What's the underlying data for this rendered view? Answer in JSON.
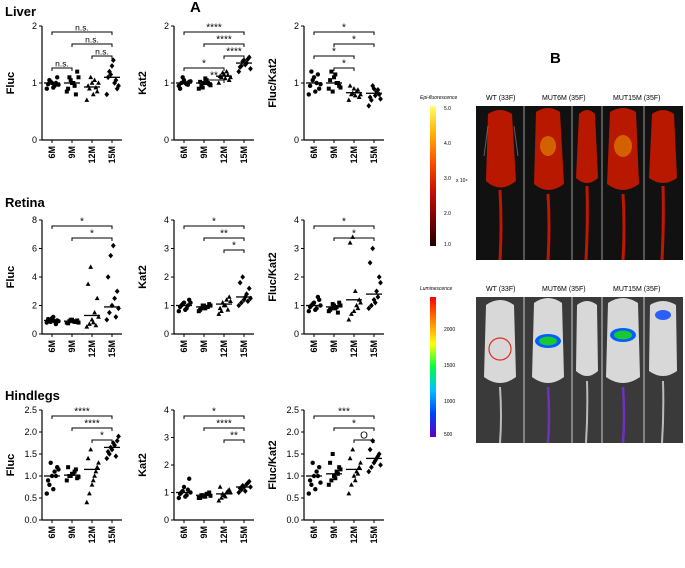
{
  "panel_labels": {
    "a": "A",
    "b": "B"
  },
  "rows": [
    {
      "tissue": "Liver"
    },
    {
      "tissue": "Retina"
    },
    {
      "tissue": "Hindlegs"
    }
  ],
  "categories": [
    "6M",
    "9M",
    "12M",
    "15M"
  ],
  "chart_data": [
    {
      "type": "scatter",
      "row": "Liver",
      "ylabel": "Fluc",
      "ylim": [
        0,
        2
      ],
      "yticks": [
        0,
        1,
        2
      ],
      "means": [
        1.0,
        1.0,
        0.93,
        1.1
      ],
      "series": [
        {
          "values": [
            0.9,
            1.05,
            1.0,
            0.95,
            1.1,
            0.98,
            1.02,
            0.92,
            1.0,
            0.97
          ]
        },
        {
          "values": [
            0.85,
            1.1,
            1.0,
            0.95,
            1.2,
            0.9,
            1.05,
            1.0,
            0.8,
            1.1
          ]
        },
        {
          "values": [
            0.7,
            0.9,
            1.0,
            1.05,
            0.85,
            0.95,
            1.1,
            0.8,
            0.92,
            1.0
          ]
        },
        {
          "values": [
            0.8,
            1.2,
            1.3,
            1.0,
            0.9,
            1.1,
            1.15,
            1.4,
            1.05,
            0.95
          ]
        }
      ],
      "significance": [
        {
          "pair": [
            0,
            1
          ],
          "label": "n.s."
        },
        {
          "pair": [
            2,
            3
          ],
          "label": "n.s."
        },
        {
          "pair": [
            1,
            3
          ],
          "label": "n.s."
        },
        {
          "pair": [
            0,
            3
          ],
          "label": "n.s."
        }
      ]
    },
    {
      "type": "scatter",
      "row": "Liver",
      "ylabel": "Kat2",
      "ylim": [
        0,
        2
      ],
      "yticks": [
        0,
        1,
        2
      ],
      "means": [
        1.0,
        1.0,
        1.12,
        1.35
      ],
      "series": [
        {
          "values": [
            0.95,
            1.0,
            1.05,
            0.98,
            1.02,
            0.9,
            1.1,
            1.0,
            0.97,
            1.03
          ]
        },
        {
          "values": [
            0.9,
            0.95,
            1.0,
            1.05,
            0.98,
            1.02,
            0.92,
            1.08,
            1.0,
            0.96
          ]
        },
        {
          "values": [
            1.0,
            1.1,
            1.15,
            1.2,
            1.05,
            1.12,
            1.18,
            1.08,
            1.14,
            1.1
          ]
        },
        {
          "values": [
            1.2,
            1.3,
            1.4,
            1.35,
            1.45,
            1.28,
            1.38,
            1.32,
            1.42,
            1.25
          ]
        }
      ],
      "significance": [
        {
          "pair": [
            1,
            2
          ],
          "label": "**"
        },
        {
          "pair": [
            0,
            2
          ],
          "label": "*"
        },
        {
          "pair": [
            2,
            3
          ],
          "label": "****"
        },
        {
          "pair": [
            1,
            3
          ],
          "label": "****"
        },
        {
          "pair": [
            0,
            3
          ],
          "label": "****"
        }
      ]
    },
    {
      "type": "scatter",
      "row": "Liver",
      "ylabel": "Fluc/Kat2",
      "ylim": [
        0,
        2
      ],
      "yticks": [
        0,
        1,
        2
      ],
      "means": [
        1.0,
        1.0,
        0.83,
        0.82
      ],
      "series": [
        {
          "values": [
            0.8,
            1.2,
            1.1,
            1.0,
            0.9,
            0.95,
            1.05,
            0.85,
            1.15,
            0.98
          ]
        },
        {
          "values": [
            0.9,
            1.2,
            1.1,
            1.0,
            0.95,
            1.05,
            0.85,
            1.15,
            1.0,
            0.92
          ]
        },
        {
          "values": [
            0.7,
            0.8,
            0.9,
            0.85,
            0.75,
            0.95,
            0.82,
            0.78,
            0.88,
            0.8
          ]
        },
        {
          "values": [
            0.6,
            0.7,
            0.9,
            0.85,
            0.8,
            0.75,
            0.95,
            0.78,
            0.88,
            0.72
          ]
        }
      ],
      "significance": [
        {
          "pair": [
            1,
            2
          ],
          "label": "*"
        },
        {
          "pair": [
            0,
            2
          ],
          "label": "*"
        },
        {
          "pair": [
            1,
            3
          ],
          "label": "*"
        },
        {
          "pair": [
            0,
            3
          ],
          "label": "*"
        }
      ]
    },
    {
      "type": "scatter",
      "row": "Retina",
      "ylabel": "Fluc",
      "ylim": [
        0,
        8
      ],
      "yticks": [
        0,
        2,
        4,
        6,
        8
      ],
      "means": [
        0.95,
        0.9,
        1.3,
        1.9
      ],
      "series": [
        {
          "values": [
            0.8,
            1.0,
            1.1,
            0.9,
            0.95,
            1.05,
            0.85,
            1.2,
            0.7,
            0.9
          ]
        },
        {
          "values": [
            0.8,
            0.9,
            1.0,
            0.85,
            0.95,
            0.75,
            1.0,
            0.9,
            0.85,
            0.8
          ]
        },
        {
          "values": [
            0.5,
            0.7,
            1.0,
            1.5,
            2.5,
            3.5,
            4.7,
            0.8,
            0.6,
            1.2
          ]
        },
        {
          "values": [
            1.0,
            1.5,
            2.0,
            2.5,
            3.0,
            4.0,
            5.5,
            6.2,
            1.2,
            1.8
          ]
        }
      ],
      "significance": [
        {
          "pair": [
            1,
            3
          ],
          "label": "*"
        },
        {
          "pair": [
            0,
            3
          ],
          "label": "*"
        }
      ]
    },
    {
      "type": "scatter",
      "row": "Retina",
      "ylabel": "Kat2",
      "ylim": [
        0,
        4
      ],
      "yticks": [
        0,
        1,
        2,
        3,
        4
      ],
      "means": [
        1.0,
        0.95,
        1.05,
        1.3
      ],
      "series": [
        {
          "values": [
            0.8,
            1.0,
            1.1,
            0.9,
            1.2,
            0.95,
            1.05,
            0.85,
            1.0,
            1.1
          ]
        },
        {
          "values": [
            0.8,
            0.9,
            1.0,
            0.95,
            1.05,
            0.85,
            1.0,
            0.9,
            0.95,
            1.0
          ]
        },
        {
          "values": [
            0.7,
            0.8,
            1.0,
            1.2,
            1.3,
            0.9,
            1.1,
            1.0,
            0.85,
            1.15
          ]
        },
        {
          "values": [
            1.0,
            1.1,
            1.2,
            1.4,
            1.6,
            1.8,
            2.0,
            1.3,
            1.15,
            1.25
          ]
        }
      ],
      "significance": [
        {
          "pair": [
            2,
            3
          ],
          "label": "*"
        },
        {
          "pair": [
            1,
            3
          ],
          "label": "**"
        },
        {
          "pair": [
            0,
            3
          ],
          "label": "*"
        }
      ]
    },
    {
      "type": "scatter",
      "row": "Retina",
      "ylabel": "Fluc/Kat2",
      "ylim": [
        0,
        4
      ],
      "yticks": [
        0,
        1,
        2,
        3,
        4
      ],
      "means": [
        1.0,
        0.95,
        1.2,
        1.4
      ],
      "series": [
        {
          "values": [
            0.8,
            1.0,
            1.1,
            0.9,
            1.2,
            0.95,
            1.05,
            0.85,
            1.3,
            1.0
          ]
        },
        {
          "values": [
            0.8,
            0.9,
            1.0,
            0.95,
            1.1,
            0.85,
            1.05,
            0.9,
            0.75,
            1.0
          ]
        },
        {
          "values": [
            0.5,
            0.7,
            0.8,
            1.0,
            1.2,
            3.2,
            3.4,
            1.5,
            0.9,
            1.1
          ]
        },
        {
          "values": [
            0.9,
            1.0,
            1.2,
            1.5,
            2.0,
            2.5,
            3.0,
            1.1,
            1.3,
            1.8
          ]
        }
      ],
      "significance": [
        {
          "pair": [
            1,
            3
          ],
          "label": "*"
        },
        {
          "pair": [
            0,
            3
          ],
          "label": "*"
        }
      ]
    },
    {
      "type": "scatter",
      "row": "Hindlegs",
      "ylabel": "Fluc",
      "ylim": [
        0,
        2.5
      ],
      "yticks": [
        0,
        0.5,
        1.0,
        1.5,
        2.0,
        2.5
      ],
      "means": [
        1.0,
        1.02,
        1.15,
        1.65
      ],
      "series": [
        {
          "values": [
            0.6,
            0.8,
            1.0,
            1.1,
            1.2,
            0.9,
            1.3,
            0.7,
            1.0,
            1.15
          ]
        },
        {
          "values": [
            0.9,
            1.0,
            1.05,
            1.1,
            0.95,
            1.2,
            1.0,
            1.05,
            1.15,
            0.98
          ]
        },
        {
          "values": [
            0.4,
            0.6,
            0.8,
            1.0,
            1.2,
            1.4,
            1.6,
            0.9,
            1.1,
            1.3
          ]
        },
        {
          "values": [
            1.4,
            1.5,
            1.6,
            1.7,
            1.8,
            1.55,
            1.65,
            1.75,
            1.45,
            1.9
          ]
        }
      ],
      "significance": [
        {
          "pair": [
            2,
            3
          ],
          "label": "*"
        },
        {
          "pair": [
            1,
            3
          ],
          "label": "****"
        },
        {
          "pair": [
            0,
            3
          ],
          "label": "****"
        }
      ]
    },
    {
      "type": "scatter",
      "row": "Hindlegs",
      "ylabel": "Kat2",
      "ylim": [
        0,
        4
      ],
      "yticks": [
        0,
        1,
        2,
        3,
        4
      ],
      "means": [
        1.0,
        0.9,
        0.95,
        1.2
      ],
      "series": [
        {
          "values": [
            0.8,
            1.0,
            1.2,
            0.9,
            1.5,
            0.95,
            1.05,
            0.85,
            1.1,
            1.0
          ]
        },
        {
          "values": [
            0.8,
            0.9,
            0.85,
            0.95,
            1.0,
            0.8,
            0.9,
            0.85,
            0.95,
            0.88
          ]
        },
        {
          "values": [
            0.7,
            0.8,
            0.9,
            1.0,
            1.1,
            1.2,
            0.95,
            0.85,
            1.05,
            1.0
          ]
        },
        {
          "values": [
            1.0,
            1.1,
            1.2,
            1.3,
            1.4,
            1.15,
            1.25,
            1.05,
            1.35,
            1.2
          ]
        }
      ],
      "significance": [
        {
          "pair": [
            2,
            3
          ],
          "label": "**"
        },
        {
          "pair": [
            1,
            3
          ],
          "label": "****"
        },
        {
          "pair": [
            0,
            3
          ],
          "label": "*"
        }
      ]
    },
    {
      "type": "scatter",
      "row": "Hindlegs",
      "ylabel": "Fluc/Kat2",
      "ylim": [
        0,
        2.5
      ],
      "yticks": [
        0,
        0.5,
        1.0,
        1.5,
        2.0,
        2.5
      ],
      "means": [
        1.0,
        1.05,
        1.15,
        1.4
      ],
      "series": [
        {
          "values": [
            0.6,
            0.8,
            1.0,
            1.1,
            1.2,
            0.9,
            1.3,
            0.7,
            1.0,
            0.85
          ]
        },
        {
          "values": [
            0.8,
            0.9,
            1.0,
            1.1,
            1.2,
            1.3,
            1.5,
            0.95,
            1.05,
            1.15
          ]
        },
        {
          "values": [
            0.6,
            0.8,
            1.0,
            1.1,
            1.2,
            1.4,
            1.6,
            0.9,
            1.05,
            1.3
          ]
        },
        {
          "values": [
            1.1,
            1.2,
            1.3,
            1.4,
            1.5,
            1.6,
            1.8,
            1.35,
            1.45,
            1.25
          ]
        }
      ],
      "significance": [
        {
          "pair": [
            2,
            3
          ],
          "label": "O"
        },
        {
          "pair": [
            1,
            3
          ],
          "label": "*"
        },
        {
          "pair": [
            0,
            3
          ],
          "label": "***"
        }
      ]
    }
  ],
  "imaging": {
    "top": {
      "scale_title": "Epi-fluorescence",
      "scale_ticks": [
        "5.0",
        "4.0",
        "3.0",
        "2.0",
        "1.0"
      ],
      "scale_unit": "x 10⁸",
      "group_labels": [
        "WT (33F)",
        "MUT6M (35F)",
        "MUT15M (35F)"
      ]
    },
    "bottom": {
      "scale_title": "Luminescence",
      "scale_ticks": [
        "2000",
        "1500",
        "1000",
        "500"
      ],
      "group_labels": [
        "WT (33F)",
        "MUT6M (35F)",
        "MUT15M (35F)"
      ]
    }
  },
  "colors": {
    "marker": "#000000",
    "fluor_body": "#cc1a00",
    "lum_hot": "#19c832"
  }
}
